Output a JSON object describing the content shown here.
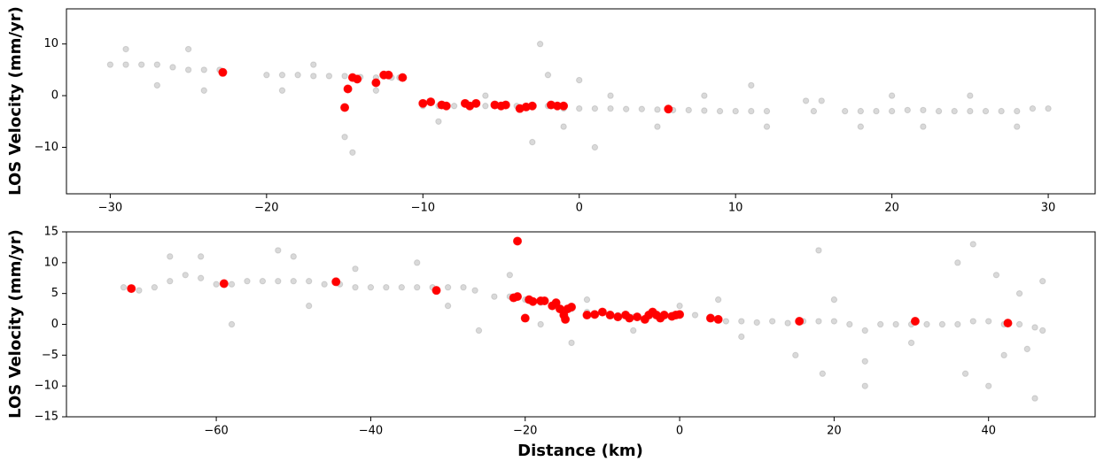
{
  "chart_data": [
    {
      "type": "scatter",
      "ylabel": "LOS Velocity (mm/yr)",
      "xlim": [
        -32.8,
        33.0
      ],
      "ylim": [
        -19.0,
        16.8
      ],
      "xticks": [
        {
          "value": -30,
          "label": "−30"
        },
        {
          "value": -20,
          "label": "−20"
        },
        {
          "value": -10,
          "label": "−10"
        },
        0,
        10,
        20,
        30
      ],
      "yticks": [
        {
          "value": -10,
          "label": "−10"
        },
        0,
        10
      ],
      "series": [
        {
          "color": "#000000",
          "x": [
            -30,
            -29,
            -28,
            -27,
            -26,
            -25,
            -24,
            -23,
            -20,
            -19,
            -18,
            -17,
            -16,
            -15,
            -14,
            -13,
            -12,
            -11.5,
            -10,
            -9,
            -8,
            -7,
            -6,
            -5,
            -4,
            -3,
            -2,
            -1,
            0,
            1,
            2,
            3,
            4,
            5,
            6,
            7,
            8,
            9,
            10,
            11,
            12,
            14.5,
            15.5,
            17,
            18,
            19,
            20,
            21,
            22,
            23,
            24,
            25,
            26,
            27,
            28,
            29,
            30,
            -29,
            -27,
            -25,
            -24,
            -19,
            -17,
            -15,
            -14.5,
            -13,
            -9,
            -6,
            -3,
            -2,
            -1,
            0,
            1,
            2,
            -2.5,
            5,
            8,
            11,
            12,
            18,
            20,
            22,
            25,
            28,
            15
          ],
          "values": [
            6,
            6,
            6,
            6,
            5.5,
            5,
            5,
            5,
            4,
            4,
            4,
            3.8,
            3.8,
            3.8,
            3.6,
            3.5,
            3.5,
            3.5,
            -2,
            -2,
            -2,
            -2,
            -2,
            -2,
            -2,
            -2.2,
            -2,
            -2.5,
            -2.5,
            -2.5,
            -2.5,
            -2.6,
            -2.6,
            -2.7,
            -2.8,
            -2.8,
            -2.9,
            -3,
            -3,
            -3,
            -3,
            -1,
            -1,
            -3,
            -3,
            -3,
            -3,
            -2.8,
            -2.8,
            -3,
            -3,
            -3,
            -3,
            -3,
            -3,
            -2.5,
            -2.5,
            9,
            2,
            9,
            1,
            1,
            6,
            -8,
            -11,
            1,
            -5,
            0,
            -9,
            4,
            -6,
            3,
            -10,
            0,
            10,
            -6,
            0,
            2,
            -6,
            -6,
            0,
            -6,
            0,
            -6,
            -3
          ]
        },
        {
          "color": "#ff0000",
          "x": [
            -22.8,
            -15,
            -14.8,
            -14.5,
            -14.2,
            -13,
            -12.5,
            -12.2,
            -11.3,
            -10,
            -9.5,
            -8.8,
            -8.5,
            -7.3,
            -7,
            -6.6,
            -5.4,
            -5,
            -4.7,
            -3.8,
            -3.4,
            -3,
            -1.8,
            -1.4,
            -1,
            5.7
          ],
          "values": [
            4.5,
            -2.3,
            1.3,
            3.5,
            3.2,
            2.5,
            4,
            4,
            3.5,
            -1.5,
            -1.2,
            -1.8,
            -2,
            -1.5,
            -2,
            -1.5,
            -1.8,
            -2,
            -1.8,
            -2.5,
            -2.2,
            -2,
            -1.8,
            -2,
            -2,
            -2.6
          ]
        }
      ]
    },
    {
      "type": "scatter",
      "ylabel": "LOS Velocity (mm/yr)",
      "xlabel": "Distance (km)",
      "xlim": [
        -79.4,
        53.8
      ],
      "ylim": [
        -15,
        15
      ],
      "xticks": [
        {
          "value": -60,
          "label": "−60"
        },
        {
          "value": -40,
          "label": "−40"
        },
        {
          "value": -20,
          "label": "−20"
        },
        0,
        20,
        40
      ],
      "yticks": [
        {
          "value": -15,
          "label": "−15"
        },
        {
          "value": -10,
          "label": "−10"
        },
        {
          "value": -5,
          "label": "−5"
        },
        0,
        5,
        10,
        15
      ],
      "series": [
        {
          "color": "#000000",
          "x": [
            -72,
            -70,
            -68,
            -66,
            -64,
            -62,
            -60,
            -58,
            -56,
            -54,
            -52,
            -50,
            -48,
            -46,
            -44,
            -42,
            -40,
            -38,
            -36,
            -34,
            -32,
            -30,
            -28,
            -26.5,
            -24,
            -22,
            -20,
            -18,
            -16,
            -14,
            -12,
            -10,
            -8,
            -6,
            -4,
            -2,
            0,
            2,
            4,
            6,
            8,
            10,
            12,
            14,
            16,
            18,
            20,
            22,
            24,
            26,
            28,
            30,
            32,
            34,
            36,
            38,
            40,
            42,
            44,
            46,
            47,
            -66,
            -62,
            -58,
            -52,
            -50,
            -48,
            -42,
            -34,
            -30,
            -26,
            -22,
            -18,
            -14,
            -12,
            -6,
            0,
            5,
            8,
            15,
            18,
            18.5,
            20,
            24,
            24,
            30,
            36,
            37,
            38,
            40,
            41,
            42,
            44,
            46,
            47,
            45
          ],
          "values": [
            6,
            5.5,
            6,
            7,
            8,
            7.5,
            6.5,
            6.5,
            7,
            7,
            7,
            7,
            7,
            6.5,
            6.5,
            6,
            6,
            6,
            6,
            6,
            6,
            6,
            6,
            5.5,
            4.5,
            4.5,
            4,
            3.5,
            3,
            2.5,
            2,
            2,
            1.5,
            1.2,
            1.5,
            1.5,
            1.5,
            1.5,
            1.2,
            0.5,
            0.5,
            0.3,
            0.5,
            0.2,
            0.5,
            0.5,
            0.5,
            0,
            -1,
            0,
            0,
            0,
            0,
            0,
            0,
            0.5,
            0.5,
            0,
            0,
            -0.5,
            -1,
            11,
            11,
            0,
            12,
            11,
            3,
            9,
            10,
            3,
            -1,
            8,
            0,
            -3,
            4,
            -1,
            3,
            4,
            -2,
            -5,
            12,
            -8,
            4,
            -6,
            -10,
            -3,
            10,
            -8,
            13,
            -10,
            8,
            -5,
            5,
            -12,
            7,
            -4
          ]
        },
        {
          "color": "#ff0000",
          "x": [
            -71,
            -59,
            -44.5,
            -31.5,
            -21,
            -21.5,
            -21,
            -20,
            -19.5,
            -19,
            -18,
            -17.5,
            -16.5,
            -16,
            -15.5,
            -15,
            -14.8,
            -14.5,
            -14,
            -12,
            -11,
            -10,
            -9,
            -8,
            -7,
            -6.5,
            -5.5,
            -4.5,
            -4,
            -3.5,
            -3,
            -2.5,
            -2,
            -1,
            -0.5,
            0,
            4,
            5,
            15.5,
            30.5,
            42.5
          ],
          "values": [
            5.8,
            6.6,
            6.9,
            5.5,
            13.5,
            4.3,
            4.5,
            1,
            4,
            3.7,
            3.8,
            3.8,
            3,
            3.5,
            2.5,
            1.5,
            0.8,
            2.5,
            2.8,
            1.5,
            1.6,
            2,
            1.5,
            1.2,
            1.5,
            1,
            1.2,
            0.8,
            1.5,
            2,
            1.5,
            1,
            1.5,
            1.3,
            1.5,
            1.6,
            1,
            0.8,
            0.5,
            0.5,
            0.2
          ]
        }
      ]
    }
  ]
}
